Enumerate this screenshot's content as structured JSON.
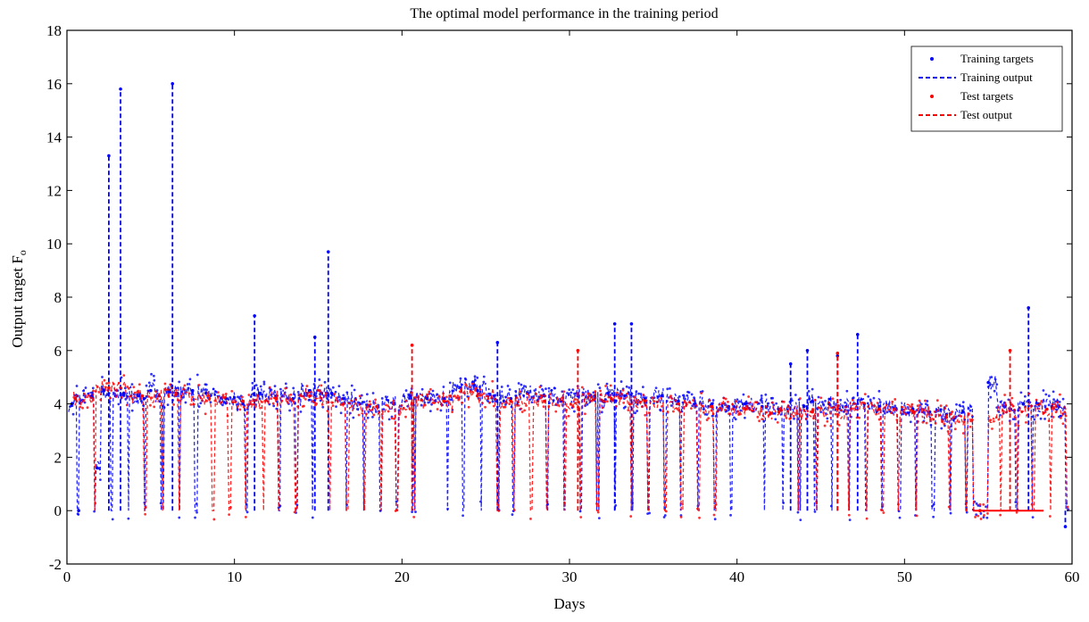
{
  "chart_data": {
    "type": "line",
    "title": "The optimal model performance in the training period",
    "xlabel": "Days",
    "ylabel": "Output target F",
    "ylabel_subscript": "o",
    "xlim": [
      0,
      60
    ],
    "ylim": [
      -2,
      18
    ],
    "xticks": [
      0,
      10,
      20,
      30,
      40,
      50,
      60
    ],
    "yticks": [
      -2,
      0,
      2,
      4,
      6,
      8,
      10,
      12,
      14,
      16,
      18
    ],
    "grid": false,
    "legend_position": "top-right",
    "legend": [
      {
        "label": "Training targets",
        "color": "#0000ff",
        "style": "dots"
      },
      {
        "label": "Training output",
        "color": "#0000ff",
        "style": "dashed"
      },
      {
        "label": "Test targets",
        "color": "#ff0000",
        "style": "dots"
      },
      {
        "label": "Test output",
        "color": "#ff0000",
        "style": "dashed"
      }
    ],
    "series": [
      {
        "name": "Training output",
        "color": "#0000ff",
        "x": [
          0.3,
          0.6,
          0.7,
          1.5,
          1.8,
          2.2,
          2.5,
          2.9,
          3.2,
          3.4,
          4.3,
          4.6,
          5.0,
          5.5,
          6.1,
          6.3,
          6.6,
          7.5,
          8.3,
          9.5,
          10.5,
          11.2,
          11.5,
          12.5,
          13.5,
          14.5,
          14.8,
          15.2,
          15.6,
          15.8,
          16.5,
          17.5,
          18.5,
          19.5,
          20.5,
          21.5,
          22.5,
          23.5,
          24.3,
          24.5,
          25.5,
          25.7,
          26.5,
          27.5,
          28.5,
          29.5,
          30.5,
          31.5,
          32.0,
          32.3,
          32.7,
          33.3,
          33.7,
          34.5,
          35.5,
          36.5,
          37.5,
          38.5,
          39.5,
          40.5,
          41.5,
          42.5,
          43.2,
          44.0,
          44.2,
          44.5,
          45.5,
          46.0,
          46.5,
          47.2,
          47.6,
          48.5,
          49.5,
          50.5,
          51.5,
          52.5,
          53.5,
          55.0,
          56.0,
          57.1,
          57.4,
          58.0,
          58.8,
          59.2,
          59.6
        ],
        "y": [
          4.0,
          4.3,
          0.0,
          4.3,
          1.6,
          4.5,
          13.3,
          4.3,
          15.8,
          4.4,
          4.3,
          4.2,
          4.5,
          4.3,
          4.5,
          16.0,
          4.4,
          4.5,
          4.4,
          4.2,
          4.0,
          7.3,
          4.4,
          4.3,
          4.2,
          4.5,
          6.5,
          4.4,
          9.7,
          4.4,
          4.2,
          4.0,
          3.9,
          4.0,
          4.3,
          4.2,
          4.2,
          4.6,
          4.7,
          4.5,
          4.3,
          6.3,
          4.2,
          4.4,
          4.3,
          4.1,
          4.3,
          4.3,
          4.1,
          4.4,
          7.0,
          4.3,
          7.0,
          4.2,
          4.3,
          4.1,
          4.0,
          4.0,
          3.9,
          4.0,
          3.9,
          3.8,
          5.5,
          3.9,
          6.0,
          4.1,
          4.0,
          5.8,
          3.9,
          6.6,
          4.0,
          3.9,
          3.8,
          3.8,
          3.7,
          3.6,
          3.7,
          4.8,
          3.9,
          4.0,
          7.6,
          4.0,
          3.9,
          3.9,
          -0.6
        ]
      },
      {
        "name": "Test output",
        "color": "#ff0000",
        "x": [
          0.5,
          2.5,
          4.5,
          6.5,
          8.5,
          10.5,
          12.5,
          14.5,
          16.5,
          18.5,
          20.6,
          22.5,
          24.5,
          26.5,
          28.5,
          30.5,
          32.5,
          34.5,
          36.5,
          38.5,
          40.5,
          42.5,
          44.5,
          46.0,
          48.5,
          50.5,
          52.5,
          54.5,
          56.3,
          58.5
        ],
        "y": [
          4.2,
          4.6,
          4.3,
          4.4,
          4.2,
          4.1,
          4.2,
          4.3,
          4.0,
          3.9,
          6.2,
          4.1,
          4.3,
          4.1,
          4.1,
          6.0,
          4.2,
          4.1,
          4.0,
          3.9,
          3.8,
          3.7,
          3.7,
          5.9,
          3.8,
          3.7,
          3.5,
          0.0,
          6.0,
          3.8
        ]
      }
    ]
  }
}
